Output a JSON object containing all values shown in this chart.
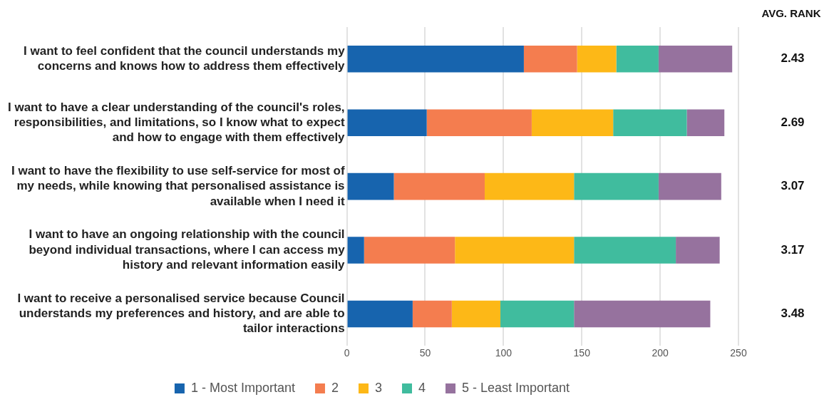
{
  "chart_data": {
    "type": "bar",
    "orientation": "horizontal",
    "stacked": true,
    "categories": [
      "I want to feel confident that the council understands my concerns and knows how to address them effectively",
      "I want to have a clear understanding of the council's roles, responsibilities, and limitations, so I know what to expect and how to engage with them effectively",
      "I want to have the flexibility to use self-service for most of my needs, while knowing that personalised assistance is available when I need it",
      "I want to have an ongoing relationship with the council beyond individual transactions, where I can access my history and relevant information easily",
      "I want to receive a personalised service because Council understands my preferences and history, and are able to tailor interactions"
    ],
    "series": [
      {
        "name": "1 - Most Important",
        "color": "#1764ae",
        "values": [
          113,
          51,
          30,
          11,
          42
        ]
      },
      {
        "name": "2",
        "color": "#f47d4f",
        "values": [
          34,
          67,
          58,
          58,
          25
        ]
      },
      {
        "name": "3",
        "color": "#fdb817",
        "values": [
          25,
          52,
          57,
          76,
          31
        ]
      },
      {
        "name": "4",
        "color": "#40bc9e",
        "values": [
          27,
          47,
          54,
          65,
          47
        ]
      },
      {
        "name": "5 - Least Important",
        "color": "#96729e",
        "values": [
          47,
          24,
          40,
          28,
          87
        ]
      }
    ],
    "xlim": [
      0,
      250
    ],
    "xticks": [
      0,
      50,
      100,
      150,
      200,
      250
    ],
    "grid": "x",
    "legend": "bottom",
    "annotations": [
      "AVG. RANK",
      "2.43",
      "2.69",
      "3.07",
      "3.17",
      "3.48"
    ]
  }
}
